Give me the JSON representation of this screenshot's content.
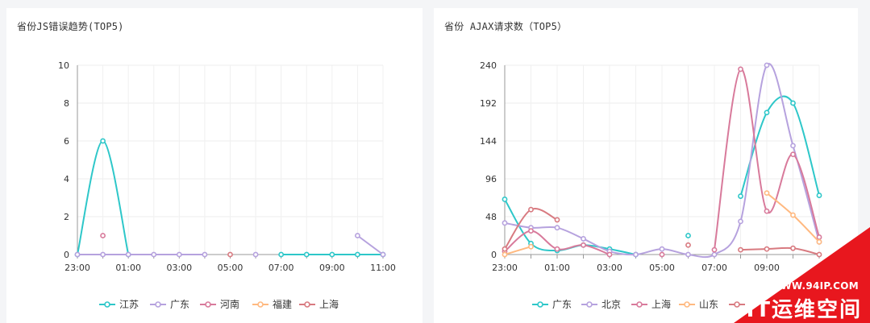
{
  "panels": [
    {
      "title": "省份JS错误趋势(TOP5)"
    },
    {
      "title": "省份 AJAX请求数（TOP5）"
    }
  ],
  "chart_data": [
    {
      "type": "line",
      "title": "省份JS错误趋势(TOP5)",
      "ylim": [
        0,
        10
      ],
      "yticks": [
        0,
        2,
        4,
        6,
        8,
        10
      ],
      "x": [
        "23:00",
        "00:00",
        "01:00",
        "02:00",
        "03:00",
        "04:00",
        "05:00",
        "06:00",
        "07:00",
        "08:00",
        "09:00",
        "10:00",
        "11:00"
      ],
      "xtick_labels": [
        "23:00",
        "01:00",
        "03:00",
        "05:00",
        "07:00",
        "09:00",
        "11:00"
      ],
      "grid": true,
      "legend_position": "bottom-center",
      "series": [
        {
          "name": "江苏",
          "color": "#2ec7c9",
          "values": [
            0,
            6,
            0,
            null,
            null,
            null,
            null,
            null,
            0,
            0,
            0,
            0,
            0
          ]
        },
        {
          "name": "广东",
          "color": "#b6a2de",
          "values": [
            0,
            0,
            0,
            0,
            0,
            0,
            null,
            0,
            null,
            null,
            null,
            1,
            0
          ]
        },
        {
          "name": "河南",
          "color": "#d87a9b",
          "values": [
            null,
            1,
            null,
            null,
            null,
            null,
            null,
            null,
            null,
            null,
            null,
            null,
            null
          ]
        },
        {
          "name": "福建",
          "color": "#ffb980",
          "values": [
            null,
            null,
            null,
            null,
            null,
            null,
            null,
            null,
            null,
            null,
            null,
            null,
            null
          ]
        },
        {
          "name": "上海",
          "color": "#d87a80",
          "values": [
            null,
            null,
            null,
            null,
            null,
            null,
            0,
            null,
            null,
            null,
            null,
            null,
            null
          ]
        }
      ]
    },
    {
      "type": "line",
      "title": "省份 AJAX请求数（TOP5）",
      "ylim": [
        0,
        240
      ],
      "yticks": [
        0,
        48,
        96,
        144,
        192,
        240
      ],
      "x": [
        "23:00",
        "00:00",
        "01:00",
        "02:00",
        "03:00",
        "04:00",
        "05:00",
        "06:00",
        "07:00",
        "08:00",
        "09:00",
        "10:00",
        "11:00"
      ],
      "xtick_labels": [
        "23:00",
        "01:00",
        "03:00",
        "05:00",
        "07:00",
        "09:00"
      ],
      "grid": true,
      "legend_position": "bottom-center",
      "series": [
        {
          "name": "广东",
          "color": "#2ec7c9",
          "values": [
            70,
            14,
            5,
            12,
            7,
            0,
            null,
            24,
            null,
            74,
            180,
            192,
            75
          ]
        },
        {
          "name": "北京",
          "color": "#b6a2de",
          "values": [
            40,
            34,
            34,
            20,
            4,
            0,
            7,
            0,
            0,
            42,
            240,
            138,
            16
          ]
        },
        {
          "name": "上海",
          "color": "#d87a9b",
          "values": [
            4,
            30,
            7,
            12,
            0,
            null,
            0,
            null,
            6,
            235,
            55,
            127,
            22
          ]
        },
        {
          "name": "山东",
          "color": "#ffb980",
          "values": [
            0,
            10,
            null,
            null,
            null,
            null,
            null,
            null,
            null,
            null,
            78,
            50,
            16
          ]
        },
        {
          "name": "",
          "color": "#d87a80",
          "values": [
            7,
            57,
            44,
            null,
            null,
            null,
            null,
            12,
            null,
            6,
            7,
            8,
            0
          ]
        }
      ]
    }
  ],
  "watermark": {
    "url": "WWW.94IP.COM",
    "brand": "IT运维空间"
  }
}
